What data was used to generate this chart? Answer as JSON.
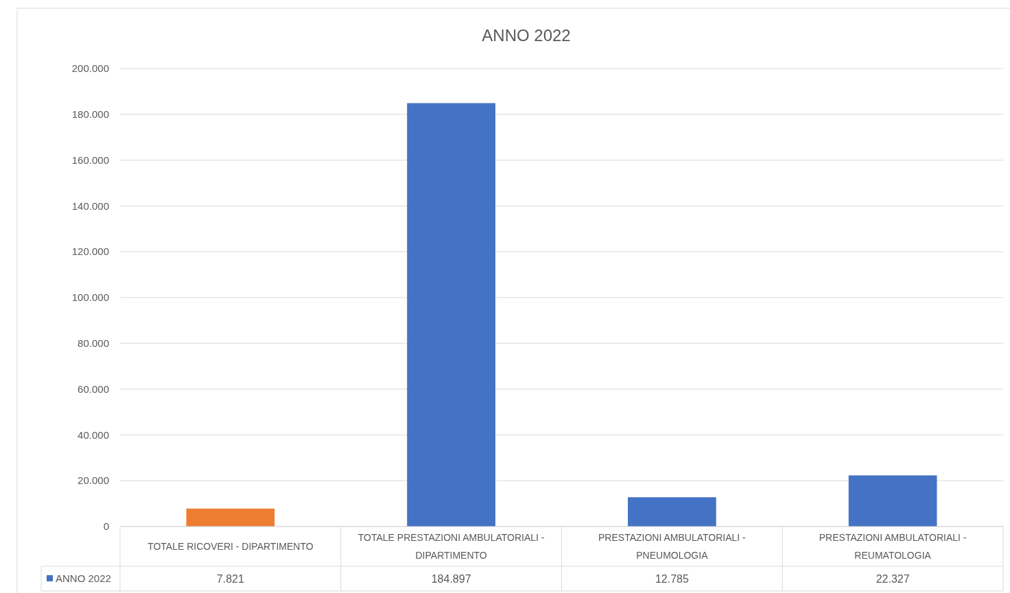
{
  "chart_data": {
    "type": "bar",
    "title": "ANNO 2022",
    "categories": [
      "TOTALE RICOVERI - DIPARTIMENTO",
      "TOTALE PRESTAZIONI AMBULATORIALI - DIPARTIMENTO",
      "PRESTAZIONI AMBULATORIALI - PNEUMOLOGIA",
      "PRESTAZIONI AMBULATORIALI - REUMATOLOGIA"
    ],
    "series": [
      {
        "name": "ANNO 2022",
        "color": "#4472c4",
        "colors": [
          "#ed7d31",
          "#4472c4",
          "#4472c4",
          "#4472c4"
        ],
        "values": [
          7821,
          184897,
          12785,
          22327
        ],
        "value_labels": [
          "7.821",
          "184.897",
          "12.785",
          "22.327"
        ]
      }
    ],
    "ylim": [
      0,
      200000
    ],
    "yticks": [
      {
        "value": 0,
        "label": "0"
      },
      {
        "value": 20000,
        "label": "20.000"
      },
      {
        "value": 40000,
        "label": "40.000"
      },
      {
        "value": 60000,
        "label": "60.000"
      },
      {
        "value": 80000,
        "label": "80.000"
      },
      {
        "value": 100000,
        "label": "100.000"
      },
      {
        "value": 120000,
        "label": "120.000"
      },
      {
        "value": 140000,
        "label": "140.000"
      },
      {
        "value": 160000,
        "label": "160.000"
      },
      {
        "value": 180000,
        "label": "180.000"
      },
      {
        "value": 200000,
        "label": "200.000"
      }
    ],
    "grid": true,
    "legend": "bottom"
  }
}
